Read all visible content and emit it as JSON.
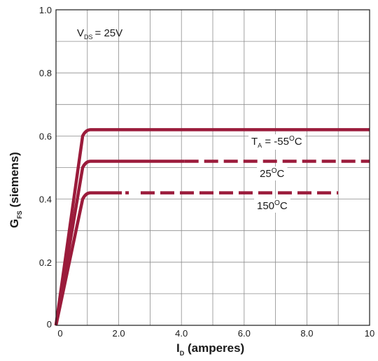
{
  "chart_data": {
    "type": "line",
    "xlabel": "I",
    "xlabel_sub": "D",
    "xlabel_rest": " (amperes)",
    "ylabel": "G",
    "ylabel_sub": "FS",
    "ylabel_rest": " (siemens)",
    "xlim": [
      0,
      10
    ],
    "ylim": [
      0,
      1.0
    ],
    "grid": true,
    "x_ticks": [
      {
        "value": 0,
        "label": "0"
      },
      {
        "value": 2,
        "label": "2.0"
      },
      {
        "value": 4,
        "label": "4.0"
      },
      {
        "value": 6,
        "label": "6.0"
      },
      {
        "value": 8,
        "label": "8.0"
      },
      {
        "value": 10,
        "label": "10"
      }
    ],
    "y_ticks": [
      {
        "value": 0,
        "label": "0"
      },
      {
        "value": 0.2,
        "label": "0.2"
      },
      {
        "value": 0.4,
        "label": "0.4"
      },
      {
        "value": 0.6,
        "label": "0.6"
      },
      {
        "value": 0.8,
        "label": "0.8"
      },
      {
        "value": 1.0,
        "label": "1.0"
      }
    ],
    "condition": {
      "main": "V",
      "sub": "DS",
      "rest": "= 25V"
    },
    "line_color": "#9b1b3b",
    "series": [
      {
        "x": [
          0,
          0.85,
          1.1,
          10
        ],
        "y": [
          0,
          0.6,
          0.62,
          0.62
        ],
        "solid_until": 10
      },
      {
        "x": [
          0,
          0.85,
          1.1,
          10
        ],
        "y": [
          0,
          0.5,
          0.52,
          0.52
        ],
        "solid_until": 4.1
      },
      {
        "x": [
          0,
          0.85,
          1.1,
          9
        ],
        "y": [
          0,
          0.4,
          0.42,
          0.42
        ],
        "solid_until": 2.1,
        "dashdot": [
          2.1,
          2.7
        ]
      }
    ],
    "series_labels": [
      {
        "pre": "T",
        "sub": "A",
        "value": " = -55",
        "sup": "O",
        "unit": "C"
      },
      {
        "value": "25",
        "sup": "O",
        "unit": "C"
      },
      {
        "value": "150",
        "sup": "O",
        "unit": "C"
      }
    ]
  }
}
